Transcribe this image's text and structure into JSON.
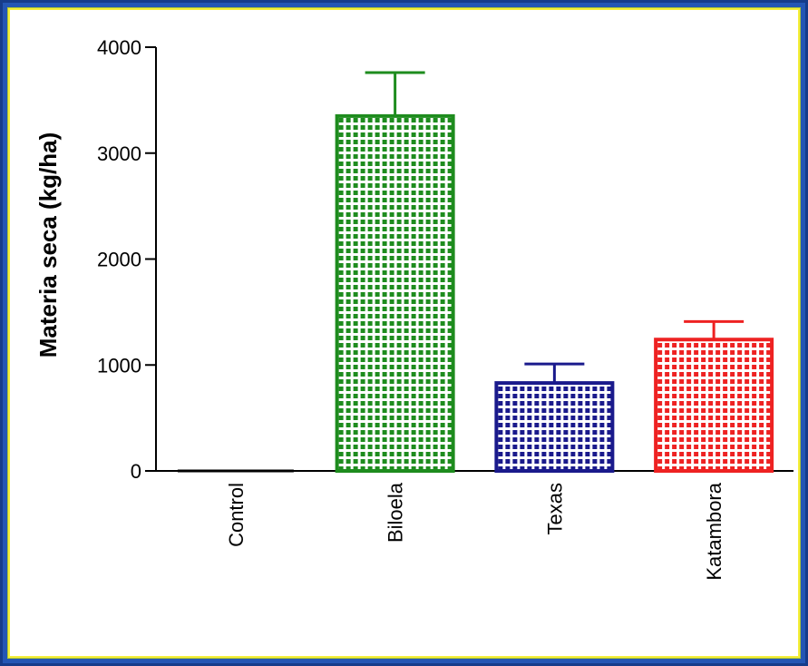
{
  "chart_data": {
    "type": "bar",
    "title": "",
    "xlabel": "",
    "ylabel": "Materia seca (kg/ha)",
    "ylim": [
      0,
      4000
    ],
    "yticks": [
      0,
      1000,
      2000,
      3000,
      4000
    ],
    "ytick_labels": [
      "0",
      "1000",
      "2000",
      "3000",
      "4000"
    ],
    "categories": [
      "Control",
      "Biloela",
      "Texas",
      "Katambora"
    ],
    "values": [
      0,
      3350,
      830,
      1240
    ],
    "error_upper": [
      0,
      410,
      180,
      170
    ],
    "colors": [
      "#000000",
      "#1e8c1e",
      "#1a1a8c",
      "#ee2222"
    ],
    "fill_pattern": "dotted-grid",
    "grid": false
  },
  "colors": {
    "frame": "#2456b4",
    "canvas_border": "#f4ee3a"
  }
}
